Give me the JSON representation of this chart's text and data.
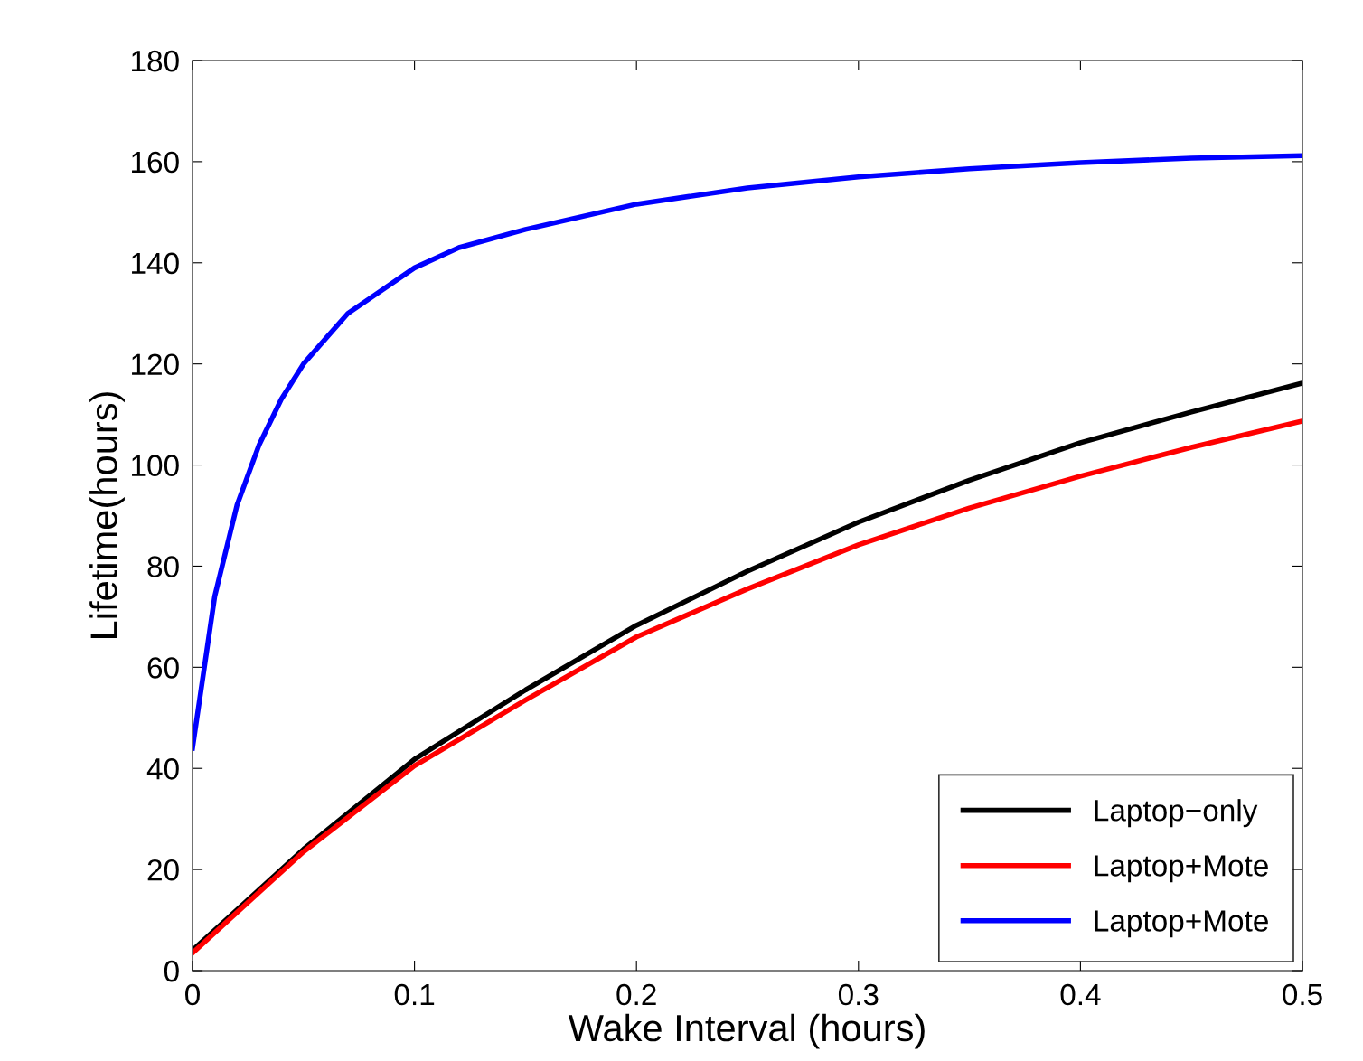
{
  "chart_data": {
    "type": "line",
    "xlabel": "Wake Interval (hours)",
    "ylabel": "Lifetime(hours)",
    "xlim": [
      0,
      0.5
    ],
    "xticks": [
      0,
      0.1,
      0.2,
      0.3,
      0.4,
      0.5
    ],
    "ylim": [
      0,
      180
    ],
    "yticks": [
      0,
      20,
      40,
      60,
      80,
      100,
      120,
      140,
      160,
      180
    ],
    "grid": false,
    "legend": "bottom right",
    "marker": "none",
    "line_style": "solid",
    "series": [
      {
        "name": "Laptop−only",
        "color": "#000000",
        "x": [
          0,
          0.05,
          0.1,
          0.15,
          0.2,
          0.25,
          0.3,
          0.35,
          0.4,
          0.45,
          0.5
        ],
        "values": [
          4,
          24,
          41.8,
          55.5,
          68.3,
          79,
          88.7,
          97,
          104.4,
          110.5,
          116.2
        ]
      },
      {
        "name": "Laptop+Mote",
        "color": "#ff0000",
        "x": [
          0,
          0.05,
          0.1,
          0.15,
          0.2,
          0.25,
          0.3,
          0.35,
          0.4,
          0.45,
          0.5
        ],
        "values": [
          3.5,
          23.5,
          40.5,
          53.5,
          66,
          75.5,
          84.2,
          91.5,
          97.8,
          103.5,
          108.7
        ]
      },
      {
        "name": "Laptop+Mote",
        "color": "#0000ff",
        "x": [
          0,
          0.01,
          0.02,
          0.03,
          0.04,
          0.05,
          0.06,
          0.07,
          0.08,
          0.1,
          0.12,
          0.15,
          0.2,
          0.25,
          0.3,
          0.35,
          0.4,
          0.45,
          0.5
        ],
        "values": [
          44,
          74,
          92,
          104,
          113,
          120,
          125,
          130,
          133,
          139,
          143,
          146.6,
          151.6,
          154.8,
          157,
          158.6,
          159.8,
          160.7,
          161.2
        ]
      }
    ]
  }
}
